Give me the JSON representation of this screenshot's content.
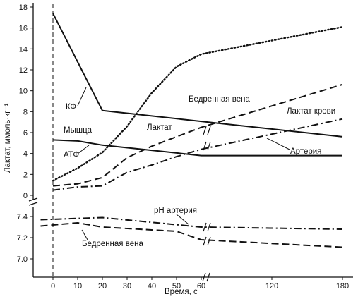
{
  "chart_data": [
    {
      "type": "line",
      "ylabel": "Лактат, ммоль·кг⁻¹",
      "xlabel": "Время, с",
      "ylim": [
        0,
        18
      ],
      "yticks": [
        "0",
        "2",
        "4",
        "6",
        "8",
        "10",
        "12",
        "14",
        "16",
        "18"
      ],
      "x_axis": "broken",
      "grid": false,
      "series": [
        {
          "name": "КФ",
          "style": "solid",
          "x": [
            0,
            20,
            180
          ],
          "values": [
            17.4,
            8.1,
            5.6
          ]
        },
        {
          "name": "АТФ",
          "style": "solid",
          "x": [
            0,
            10,
            20,
            60,
            180
          ],
          "values": [
            5.3,
            5.2,
            4.8,
            3.8,
            3.8
          ]
        },
        {
          "name": "Мышца",
          "style": "dotted",
          "x": [
            0,
            10,
            20,
            30,
            40,
            50,
            60,
            180
          ],
          "values": [
            1.4,
            2.6,
            4.1,
            6.6,
            9.8,
            12.3,
            13.5,
            16.1
          ]
        },
        {
          "name": "Бедренная вена",
          "style": "dashed",
          "x": [
            0,
            10,
            20,
            30,
            40,
            50,
            60,
            180
          ],
          "values": [
            0.9,
            1.1,
            1.7,
            3.6,
            4.7,
            5.6,
            6.5,
            10.6
          ]
        },
        {
          "name": "Артерия",
          "style": "dashdot",
          "x": [
            0,
            10,
            20,
            30,
            40,
            50,
            60,
            180
          ],
          "values": [
            0.5,
            0.8,
            0.9,
            2.2,
            2.9,
            3.7,
            4.4,
            7.3
          ]
        }
      ],
      "annotations": [
        "КФ",
        "Мышца",
        "АТФ",
        "Лактат",
        "Бедренная вена",
        "Лактат крови",
        "Артерия"
      ]
    },
    {
      "type": "line",
      "ylim": [
        7.0,
        7.4
      ],
      "yticks": [
        "7.0",
        "7.2",
        "7.4"
      ],
      "xlabel": "Время, с",
      "xticks": [
        "0",
        "10",
        "20",
        "30",
        "40",
        "50",
        "60",
        "120",
        "180"
      ],
      "x_axis": "broken",
      "grid": false,
      "series": [
        {
          "name": "pH артерия",
          "style": "dashdot",
          "x": [
            -5,
            20,
            60,
            180
          ],
          "values": [
            7.37,
            7.39,
            7.3,
            7.28
          ]
        },
        {
          "name": "Бедренная вена",
          "style": "dashed",
          "x": [
            -5,
            10,
            20,
            50,
            60,
            180
          ],
          "values": [
            7.31,
            7.34,
            7.3,
            7.26,
            7.18,
            7.11
          ]
        }
      ],
      "annotations": [
        "pH артерия",
        "Бедренная вена"
      ]
    }
  ],
  "labels": {
    "ylabel": "Лактат, ммоль·кг⁻¹",
    "xlabel": "Время, с",
    "kf": "КФ",
    "muscle": "Мышца",
    "atp": "АТФ",
    "lactate": "Лактат",
    "fem_vein": "Бедренная вена",
    "blood_lactate": "Лактат крови",
    "artery": "Артерия",
    "ph_artery": "pH артерия",
    "fem_vein_ph": "Бедренная вена"
  },
  "colors": {
    "ink": "#111111",
    "background": "#ffffff"
  }
}
